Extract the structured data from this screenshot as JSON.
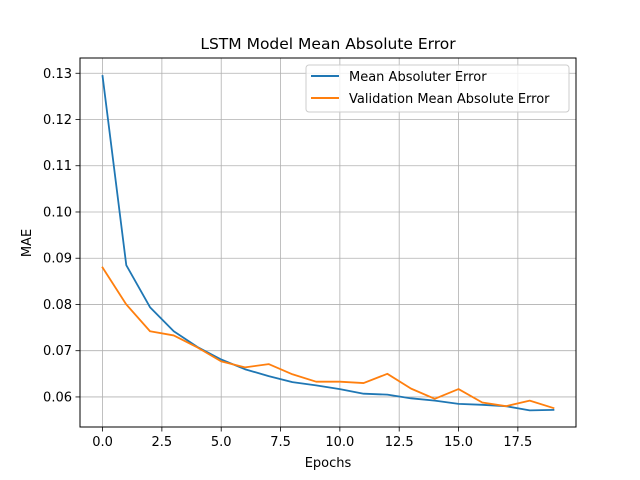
{
  "chart_data": {
    "type": "line",
    "title": "LSTM Model Mean Absolute Error",
    "xlabel": "Epochs",
    "ylabel": "MAE",
    "x": [
      0,
      1,
      2,
      3,
      4,
      5,
      6,
      7,
      8,
      9,
      10,
      11,
      12,
      13,
      14,
      15,
      16,
      17,
      18,
      19
    ],
    "xlim": [
      -0.95,
      19.95
    ],
    "ylim": [
      0.0535,
      0.1333
    ],
    "xticks": [
      0.0,
      2.5,
      5.0,
      7.5,
      10.0,
      12.5,
      15.0,
      17.5
    ],
    "xtick_labels": [
      "0.0",
      "2.5",
      "5.0",
      "7.5",
      "10.0",
      "12.5",
      "15.0",
      "17.5"
    ],
    "yticks": [
      0.06,
      0.07,
      0.08,
      0.09,
      0.1,
      0.11,
      0.12,
      0.13
    ],
    "ytick_labels": [
      "0.06",
      "0.07",
      "0.08",
      "0.09",
      "0.10",
      "0.11",
      "0.12",
      "0.13"
    ],
    "grid": true,
    "legend_position": "top-right",
    "series": [
      {
        "name": "Mean Absoluter Error",
        "color": "#1f77b4",
        "values": [
          0.1294,
          0.0885,
          0.0794,
          0.0742,
          0.0708,
          0.0681,
          0.066,
          0.0645,
          0.0632,
          0.0625,
          0.0617,
          0.0607,
          0.0605,
          0.0597,
          0.0592,
          0.0585,
          0.0583,
          0.058,
          0.0571,
          0.0572
        ]
      },
      {
        "name": "Validation Mean Absolute Error",
        "color": "#ff7f0e",
        "values": [
          0.088,
          0.08,
          0.0742,
          0.0733,
          0.0707,
          0.0677,
          0.0664,
          0.0671,
          0.0649,
          0.0633,
          0.0633,
          0.063,
          0.065,
          0.0618,
          0.0596,
          0.0617,
          0.0588,
          0.058,
          0.0592,
          0.0576
        ]
      }
    ]
  }
}
